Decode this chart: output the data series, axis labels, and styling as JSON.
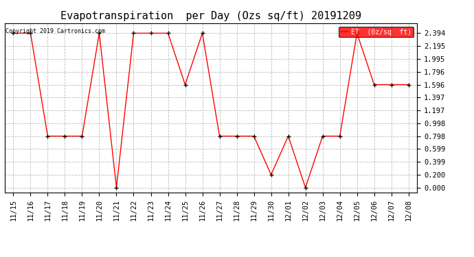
{
  "title": "Evapotranspiration  per Day (Ozs sq/ft) 20191209",
  "copyright": "Copyright 2019 Cartronics.com",
  "legend_label": "ET  (0z/sq  ft)",
  "dates": [
    "11/15",
    "11/16",
    "11/17",
    "11/18",
    "11/19",
    "11/20",
    "11/21",
    "11/22",
    "11/23",
    "11/24",
    "11/25",
    "11/26",
    "11/27",
    "11/28",
    "11/29",
    "11/30",
    "12/01",
    "12/02",
    "12/03",
    "12/04",
    "12/05",
    "12/06",
    "12/07",
    "12/08"
  ],
  "values": [
    2.394,
    2.394,
    0.798,
    0.798,
    0.798,
    2.394,
    0.0,
    2.394,
    2.394,
    2.394,
    1.596,
    2.394,
    0.798,
    0.798,
    0.798,
    0.2,
    0.798,
    0.0,
    0.798,
    0.798,
    2.394,
    1.596,
    1.596,
    1.596
  ],
  "line_color": "red",
  "marker_color": "black",
  "marker_style": "+",
  "background_color": "white",
  "grid_color": "#bbbbbb",
  "yticks": [
    0.0,
    0.2,
    0.399,
    0.599,
    0.798,
    0.998,
    1.197,
    1.397,
    1.596,
    1.796,
    1.995,
    2.195,
    2.394
  ],
  "ylim": [
    -0.08,
    2.55
  ],
  "title_fontsize": 11,
  "tick_fontsize": 7.5,
  "copyright_fontsize": 6,
  "legend_bg": "red",
  "legend_text_color": "white",
  "legend_fontsize": 7
}
